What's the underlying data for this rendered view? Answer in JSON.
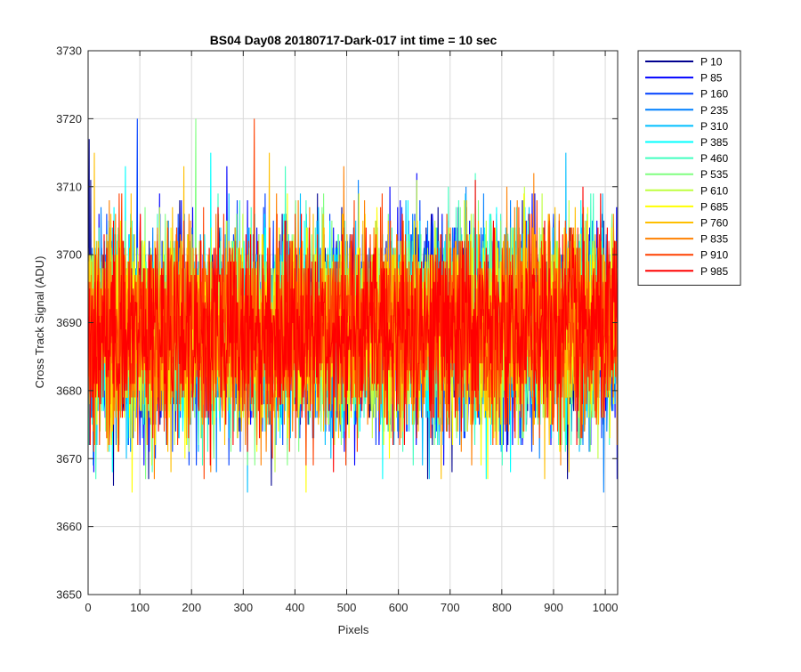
{
  "chart_data": {
    "type": "line",
    "title": "BS04 Day08 20180717-Dark-017 int time = 10 sec",
    "xlabel": "Pixels",
    "ylabel": "Cross Track Signal (ADU)",
    "xlim": [
      0,
      1024
    ],
    "ylim": [
      3650,
      3730
    ],
    "xticks": [
      0,
      100,
      200,
      300,
      400,
      500,
      600,
      700,
      800,
      900,
      1000
    ],
    "yticks": [
      3650,
      3660,
      3670,
      3680,
      3690,
      3700,
      3710,
      3720,
      3730
    ],
    "grid": true,
    "legend_position": "outside-top-right",
    "points_per_series": 1024,
    "noise_model": {
      "mean": 3689,
      "std": 7.2,
      "min": 3652,
      "max": 3722
    },
    "series": [
      {
        "name": "P 10",
        "color": "#00008f"
      },
      {
        "name": "P 85",
        "color": "#0000ff"
      },
      {
        "name": "P 160",
        "color": "#0040ff"
      },
      {
        "name": "P 235",
        "color": "#0080ff"
      },
      {
        "name": "P 310",
        "color": "#00bfff"
      },
      {
        "name": "P 385",
        "color": "#00ffff"
      },
      {
        "name": "P 460",
        "color": "#40ffbf"
      },
      {
        "name": "P 535",
        "color": "#80ff80"
      },
      {
        "name": "P 610",
        "color": "#bfff40"
      },
      {
        "name": "P 685",
        "color": "#ffff00"
      },
      {
        "name": "P 760",
        "color": "#ffbf00"
      },
      {
        "name": "P 835",
        "color": "#ff8000"
      },
      {
        "name": "P 910",
        "color": "#ff4000"
      },
      {
        "name": "P 985",
        "color": "#ff0000"
      }
    ]
  }
}
